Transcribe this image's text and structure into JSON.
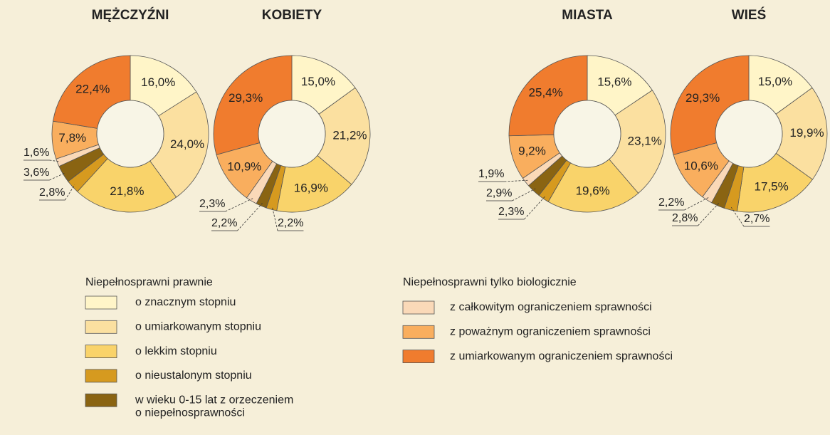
{
  "chart_data": [
    {
      "type": "donut",
      "title": "MĘŻCZYŹNI",
      "values": [
        16.0,
        24.0,
        21.8,
        2.8,
        3.6,
        1.6,
        7.8,
        22.4
      ],
      "value_labels": [
        "16,0%",
        "24,0%",
        "21,8%",
        "2,8%",
        "3,6%",
        "1,6%",
        "7,8%",
        "22,4%"
      ]
    },
    {
      "type": "donut",
      "title": "KOBIETY",
      "values": [
        15.0,
        21.2,
        16.9,
        2.2,
        2.2,
        2.3,
        10.9,
        29.3
      ],
      "value_labels": [
        "15,0%",
        "21,2%",
        "16,9%",
        "2,2%",
        "2,2%",
        "2,3%",
        "10,9%",
        "29,3%"
      ]
    },
    {
      "type": "donut",
      "title": "MIASTA",
      "values": [
        15.6,
        23.1,
        19.6,
        2.3,
        2.9,
        1.9,
        9.2,
        25.4
      ],
      "value_labels": [
        "15,6%",
        "23,1%",
        "19,6%",
        "2,3%",
        "2,9%",
        "1,9%",
        "9,2%",
        "25,4%"
      ]
    },
    {
      "type": "donut",
      "title": "WIEŚ",
      "values": [
        15.0,
        19.9,
        17.5,
        2.7,
        2.8,
        2.2,
        10.6,
        29.3
      ],
      "value_labels": [
        "15,0%",
        "19,9%",
        "17,5%",
        "2,7%",
        "2,8%",
        "2,2%",
        "10,6%",
        "29,3%"
      ]
    }
  ],
  "legend": {
    "groups": [
      {
        "title": "Niepełnosprawni prawnie",
        "items": [
          {
            "label": [
              "o znacznym stopniu"
            ],
            "color": "#fff5c8"
          },
          {
            "label": [
              "o umiarkowanym stopniu"
            ],
            "color": "#fbe0a0"
          },
          {
            "label": [
              "o lekkim stopniu"
            ],
            "color": "#f9d36a"
          },
          {
            "label": [
              "o nieustalonym stopniu"
            ],
            "color": "#d69a1f"
          },
          {
            "label": [
              "w wieku 0-15 lat z orzeczeniem",
              "o niepełnosprawności"
            ],
            "color": "#8a6412"
          }
        ]
      },
      {
        "title": "Niepełnosprawni tylko biologicznie",
        "items": [
          {
            "label": [
              "z całkowitym ograniczeniem sprawności"
            ],
            "color": "#fad9b8"
          },
          {
            "label": [
              "z poważnym ograniczeniem sprawności"
            ],
            "color": "#f9ae5e"
          },
          {
            "label": [
              "z umiarkowanym ograniczeniem sprawności"
            ],
            "color": "#f07c2e"
          }
        ]
      }
    ]
  }
}
